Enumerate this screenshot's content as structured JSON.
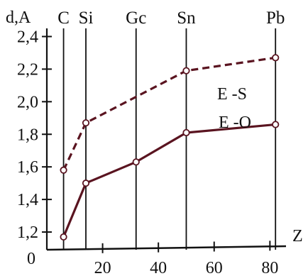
{
  "chart_data": {
    "type": "line",
    "ylabel": "d,A",
    "xlabel": "Z",
    "xlim": [
      0,
      85
    ],
    "ylim": [
      1.1,
      2.45
    ],
    "y_ticks": [
      "1,2",
      "1,4",
      "1,6",
      "1,8",
      "2,0",
      "2,2",
      "2,4"
    ],
    "x_ticks": [
      "20",
      "40",
      "60",
      "80"
    ],
    "y_origin_label": "0",
    "elements": [
      {
        "symbol": "C",
        "z": 6
      },
      {
        "symbol": "Si",
        "z": 14
      },
      {
        "symbol": "Gc",
        "z": 32
      },
      {
        "symbol": "Sn",
        "z": 50
      },
      {
        "symbol": "Pb",
        "z": 82
      }
    ],
    "series": [
      {
        "name": "E -S",
        "style": "dashed",
        "x": [
          6,
          14,
          50,
          82
        ],
        "y": [
          1.58,
          1.87,
          2.19,
          2.27
        ]
      },
      {
        "name": "E -O",
        "style": "solid",
        "x": [
          6,
          14,
          32,
          50,
          82
        ],
        "y": [
          1.17,
          1.5,
          1.63,
          1.81,
          1.86
        ]
      }
    ],
    "colors": {
      "line": "#5a1420",
      "axis": "#111111"
    }
  }
}
